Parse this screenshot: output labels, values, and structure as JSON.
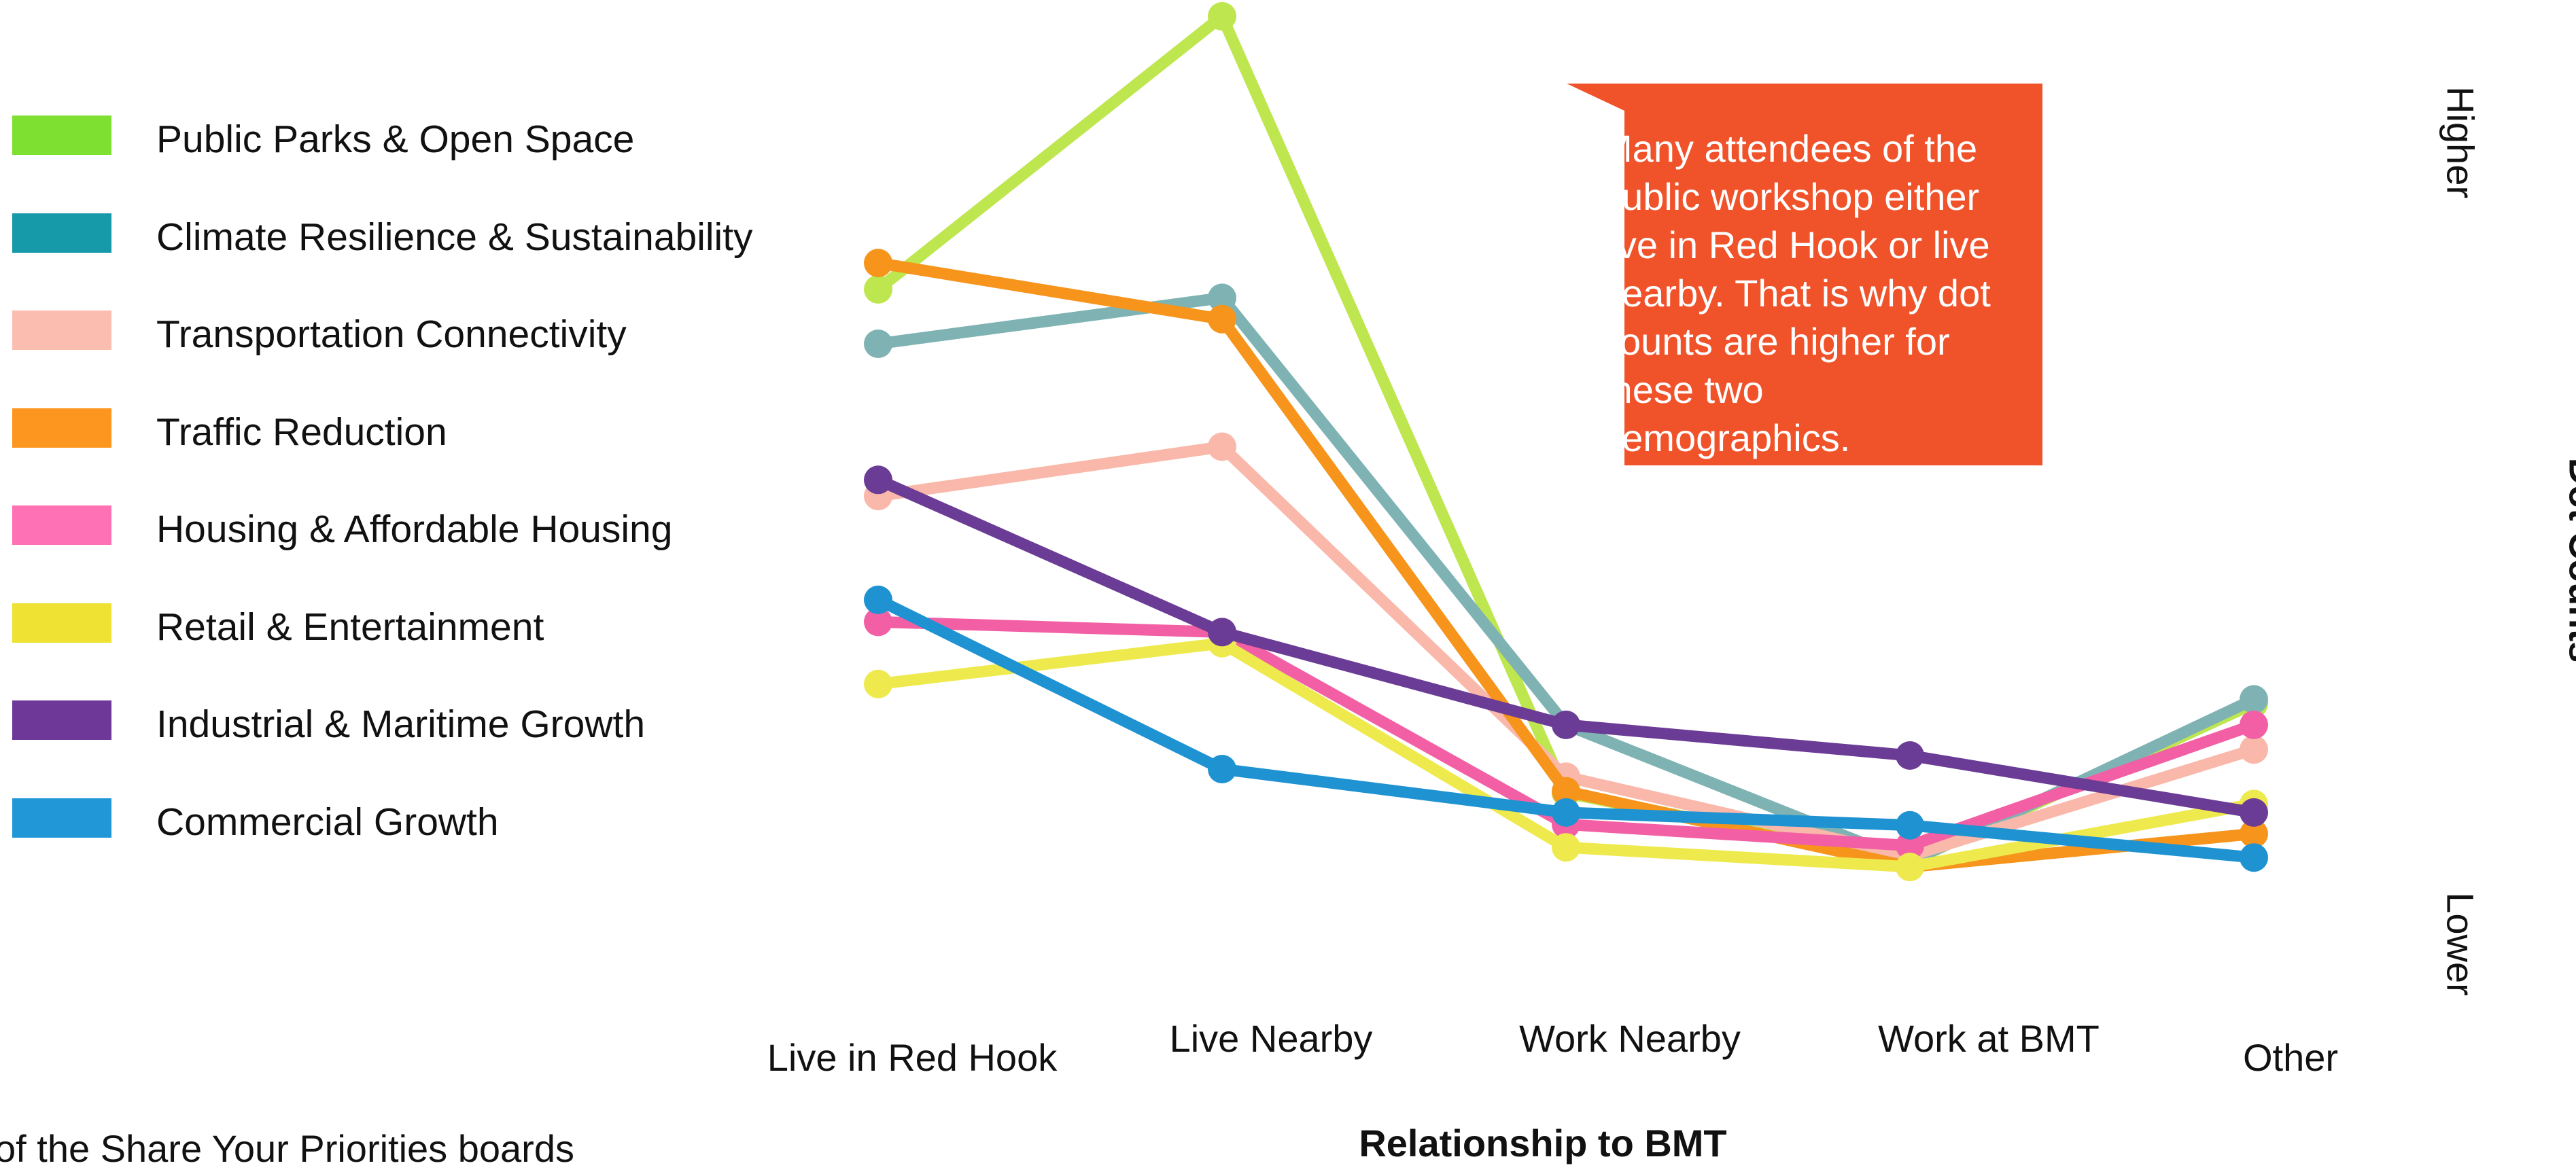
{
  "chart_data": {
    "type": "line",
    "title": "",
    "xlabel": "Relationship to BMT",
    "ylabel": "Dot Counts",
    "ylabel_high": "Higher",
    "ylabel_low": "Lower",
    "categories": [
      "Live in Red Hook",
      "Live Nearby",
      "Work Nearby",
      "Work at BMT",
      "Other"
    ],
    "ylim": [
      0,
      100
    ],
    "grid": false,
    "legend_position": "left",
    "series": [
      {
        "name": "Public Parks & Open Space",
        "color": "#bde64f",
        "legend_color": "#7ee030",
        "values": [
          67.9,
          100,
          8.7,
          0.6,
          19.2
        ]
      },
      {
        "name": "Climate Resilience & Sustainability",
        "color": "#7fb3b3",
        "legend_color": "#169aa9",
        "values": [
          61.5,
          66.9,
          16.7,
          0.6,
          19.7
        ]
      },
      {
        "name": "Transportation Connectivity",
        "color": "#f9b8aa",
        "legend_color": "#fcbdb1",
        "values": [
          43.6,
          49.4,
          10.6,
          1.3,
          13.8
        ]
      },
      {
        "name": "Traffic Reduction",
        "color": "#f6941c",
        "legend_color": "#fd961e",
        "values": [
          71.0,
          64.4,
          8.9,
          0.0,
          3.9
        ]
      },
      {
        "name": "Housing & Affordable Housing",
        "color": "#f25fa4",
        "legend_color": "#fe71b4",
        "values": [
          28.8,
          27.6,
          5.0,
          2.5,
          16.7
        ]
      },
      {
        "name": "Retail & Entertainment",
        "color": "#eeea4d",
        "legend_color": "#efe233",
        "values": [
          21.5,
          26.3,
          2.3,
          0.0,
          7.4
        ]
      },
      {
        "name": "Industrial & Maritime Growth",
        "color": "#6b3c95",
        "legend_color": "#6e3899",
        "values": [
          45.5,
          27.6,
          16.7,
          13.1,
          6.4
        ]
      },
      {
        "name": "Commercial Growth",
        "color": "#1f93d2",
        "legend_color": "#2197d7",
        "values": [
          31.4,
          11.5,
          6.4,
          4.9,
          1.1
        ]
      }
    ],
    "annotations": [
      {
        "text": "Many attendees of the public workshop either live in Red Hook or live nearby. That is why dot counts are higher for these two demographics.",
        "color": "#f0522a"
      }
    ]
  },
  "footnote": "of the Share Your Priorities boards"
}
